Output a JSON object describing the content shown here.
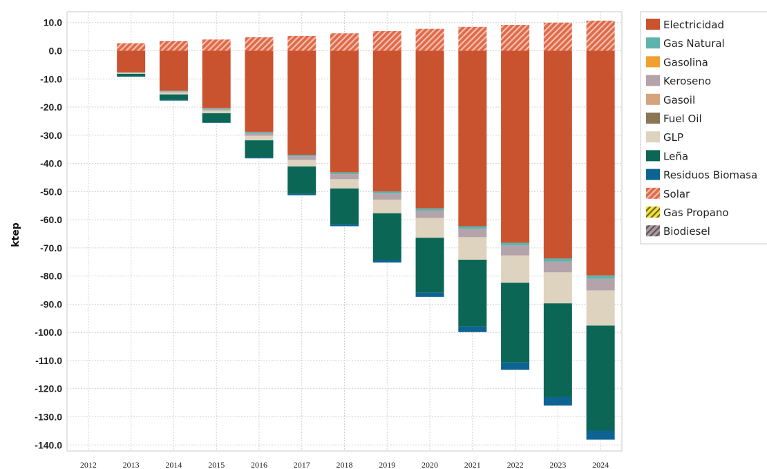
{
  "chart_data": {
    "type": "bar",
    "stacked": true,
    "ylabel": "ktep",
    "xlabel": "",
    "title": "",
    "ylim": [
      -142,
      12
    ],
    "ytick_step": 10,
    "ytick_labels": [
      "10.0",
      "0.0",
      "-10.0",
      "-20.0",
      "-30.0",
      "-40.0",
      "-50.0",
      "-60.0",
      "-70.0",
      "-80.0",
      "-90.0",
      "-100.0",
      "-110.0",
      "-120.0",
      "-130.0",
      "-140.0"
    ],
    "grid": true,
    "legend_position": "right",
    "categories": [
      "2012",
      "2013",
      "2014",
      "2015",
      "2016",
      "2017",
      "2018",
      "2019",
      "2020",
      "2021",
      "2022",
      "2023",
      "2024"
    ],
    "series": [
      {
        "name": "Electricidad",
        "color": "#c9532f",
        "pattern": "solid",
        "values": [
          0,
          -7.6,
          -14.2,
          -20.3,
          -28.8,
          -37.0,
          -43.2,
          -50.0,
          -56.0,
          -62.3,
          -68.2,
          -73.8,
          -79.8
        ]
      },
      {
        "name": "Gas Natural",
        "color": "#5fb3ad",
        "pattern": "solid",
        "values": [
          0,
          -0.1,
          -0.2,
          -0.3,
          -0.4,
          -0.5,
          -0.6,
          -0.7,
          -0.8,
          -0.9,
          -1.0,
          -1.1,
          -1.2
        ]
      },
      {
        "name": "Gasolina",
        "color": "#f0a030",
        "pattern": "solid",
        "values": [
          0,
          0,
          0,
          0,
          0,
          0,
          0,
          0,
          0,
          0,
          0,
          0,
          0
        ]
      },
      {
        "name": "Keroseno",
        "color": "#b4a3aa",
        "pattern": "solid",
        "values": [
          0,
          -0.2,
          -0.4,
          -0.6,
          -1.0,
          -1.3,
          -1.8,
          -2.2,
          -2.6,
          -3.0,
          -3.5,
          -3.8,
          -4.1
        ]
      },
      {
        "name": "Gasoil",
        "color": "#d5a37c",
        "pattern": "solid",
        "values": [
          0,
          0,
          0,
          0,
          0,
          0,
          0,
          0,
          0,
          0,
          0,
          0,
          0
        ]
      },
      {
        "name": "Fuel Oil",
        "color": "#8b7755",
        "pattern": "solid",
        "values": [
          0,
          0,
          0,
          0,
          0,
          0,
          0,
          0,
          0,
          0,
          0,
          0,
          0
        ]
      },
      {
        "name": "GLP",
        "color": "#ddd3bf",
        "pattern": "solid",
        "values": [
          0,
          -0.3,
          -0.7,
          -1.0,
          -1.6,
          -2.3,
          -3.3,
          -4.8,
          -7.0,
          -8.0,
          -9.7,
          -11.0,
          -12.5
        ]
      },
      {
        "name": "Leña",
        "color": "#0b6655",
        "pattern": "solid",
        "values": [
          0,
          -0.9,
          -2.0,
          -3.2,
          -6.0,
          -9.7,
          -12.7,
          -16.5,
          -19.5,
          -23.7,
          -28.3,
          -33.3,
          -37.3
        ]
      },
      {
        "name": "Residuos Biomasa",
        "color": "#0d6392",
        "pattern": "solid",
        "values": [
          0,
          -0.1,
          -0.2,
          -0.2,
          -0.4,
          -0.5,
          -0.7,
          -1.0,
          -1.5,
          -2.0,
          -2.6,
          -3.0,
          -3.2
        ]
      },
      {
        "name": "Solar",
        "color": "#e06a4a",
        "pattern": "hatch",
        "values": [
          0,
          2.7,
          3.5,
          4.0,
          4.8,
          5.3,
          6.2,
          7.0,
          7.8,
          8.5,
          9.2,
          10.0,
          10.7
        ]
      },
      {
        "name": "Gas Propano",
        "color": "#f2e13c",
        "pattern": "hatch",
        "values": [
          0,
          0,
          0,
          0,
          0,
          0,
          0,
          0,
          0,
          0,
          0,
          0,
          0
        ]
      },
      {
        "name": "Biodiesel",
        "color": "#a89ba2",
        "pattern": "hatch",
        "values": [
          0,
          0,
          0,
          0,
          0,
          0,
          0,
          0,
          0,
          0,
          0,
          0,
          0
        ]
      }
    ]
  }
}
